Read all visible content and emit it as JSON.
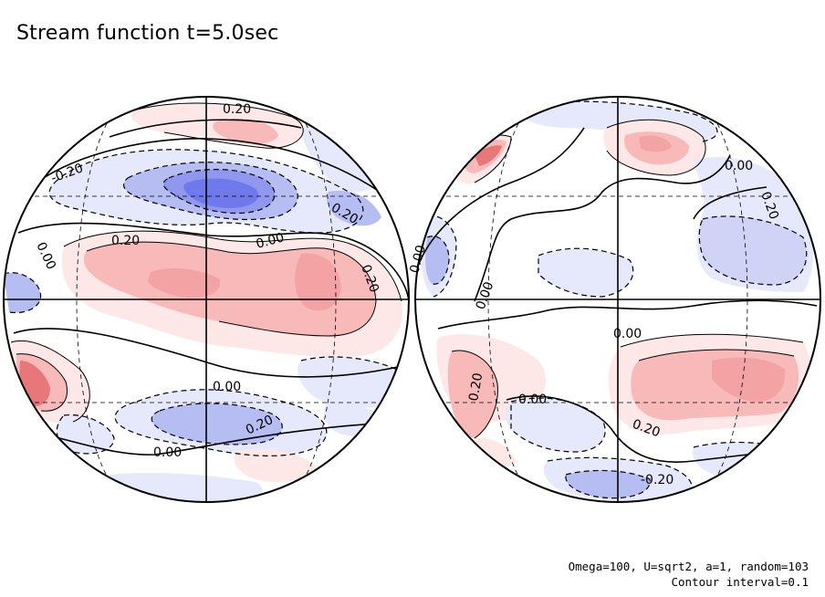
{
  "title": "Stream function t=5.0sec",
  "params_line": "Omega=100, U=sqrt2, a=1, random=103",
  "contour_line": "Contour interval=0.1",
  "colors": {
    "positive_light": "#fde7e7",
    "positive_mid": "#f8b9b9",
    "positive_strong": "#e8777a",
    "negative_light": "#e6e8fb",
    "negative_mid": "#b6bdf3",
    "negative_strong": "#6f79ec",
    "contour": "#000000"
  },
  "left_hemisphere": {
    "labels": [
      "0.20",
      "-0.20",
      "0.20",
      "0.00",
      "0.20",
      "0.00",
      "0.20",
      "0.00",
      "0.20",
      "0.00"
    ]
  },
  "right_hemisphere": {
    "labels": [
      "0.00",
      "0.20",
      "0.00",
      "0.00",
      "0.20",
      "0.00",
      "0.20",
      "-0.20",
      "0.00"
    ]
  }
}
